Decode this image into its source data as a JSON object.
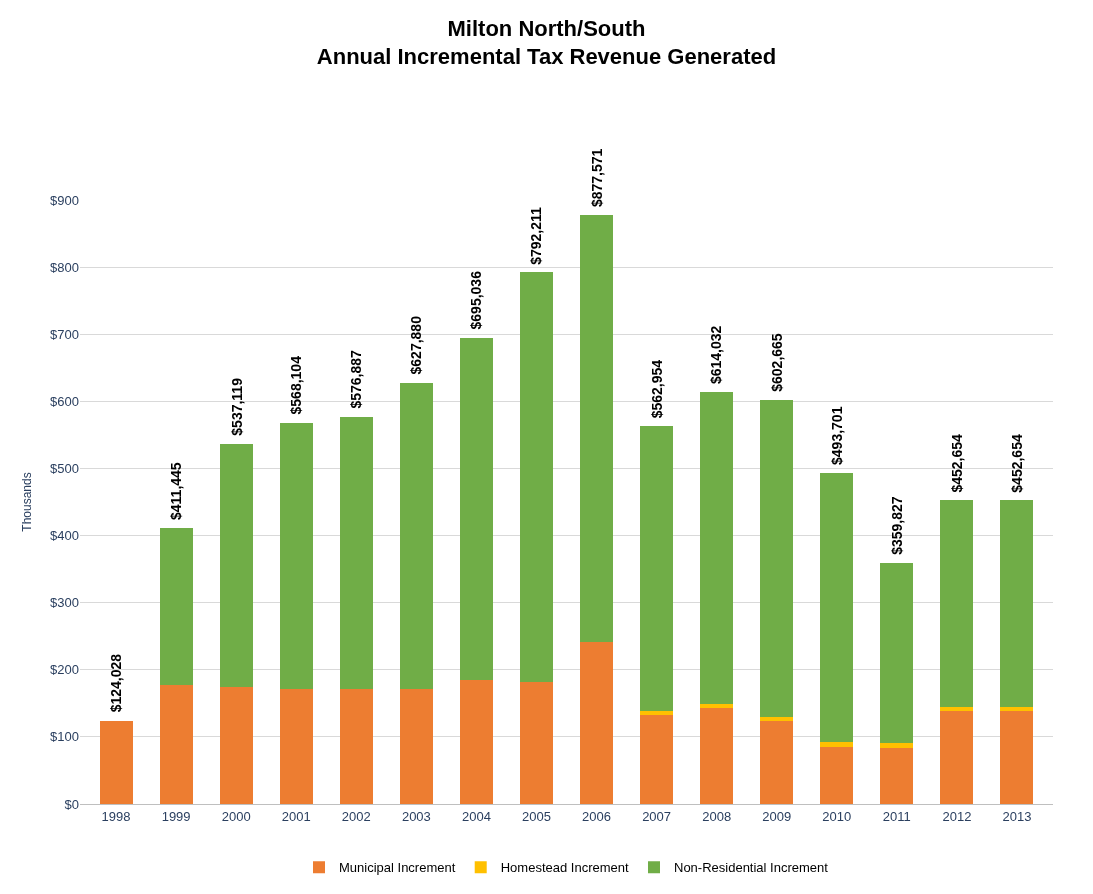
{
  "chart_data": {
    "type": "bar",
    "stacked": true,
    "title": "Milton North/South\nAnnual Incremental Tax Revenue Generated",
    "ylabel": "Thousands",
    "categories": [
      "1998",
      "1999",
      "2000",
      "2001",
      "2002",
      "2003",
      "2004",
      "2005",
      "2006",
      "2007",
      "2008",
      "2009",
      "2010",
      "2011",
      "2012",
      "2013"
    ],
    "series": [
      {
        "name": "Municipal Increment",
        "color": "#ed7d31",
        "values": [
          124.028,
          178,
          174,
          172,
          172,
          172,
          185,
          182,
          242,
          133,
          143,
          124,
          85,
          84,
          138,
          138
        ]
      },
      {
        "name": "Homestead Increment",
        "color": "#ffc000",
        "values": [
          null,
          null,
          null,
          null,
          null,
          null,
          null,
          null,
          null,
          6,
          6,
          6,
          7,
          7,
          6,
          6
        ]
      },
      {
        "name": "Non-Residential Increment",
        "color": "#70ad47",
        "values": [
          null,
          233.445,
          363.119,
          396.104,
          404.887,
          455.88,
          510.036,
          610.211,
          635.571,
          423.954,
          465.032,
          472.665,
          401.701,
          268.827,
          308.654,
          308.654
        ]
      }
    ],
    "totals": [
      "$124,028",
      "$411,445",
      "$537,119",
      "$568,104",
      "$576,887",
      "$627,880",
      "$695,036",
      "$792,211",
      "$877,571",
      "$562,954",
      "$614,032",
      "$602,665",
      "$493,701",
      "$359,827",
      "$452,654",
      "$452,654"
    ],
    "ylim": [
      0,
      900
    ],
    "yticks": [
      {
        "value": 0,
        "label": "$0"
      },
      {
        "value": 100,
        "label": "$100"
      },
      {
        "value": 200,
        "label": "$200"
      },
      {
        "value": 300,
        "label": "$300"
      },
      {
        "value": 400,
        "label": "$400"
      },
      {
        "value": 500,
        "label": "$500"
      },
      {
        "value": 600,
        "label": "$600"
      },
      {
        "value": 700,
        "label": "$700"
      },
      {
        "value": 800,
        "label": "$800"
      },
      {
        "value": 900,
        "label": "$900"
      }
    ],
    "grid": "y",
    "legend": "bottom"
  }
}
